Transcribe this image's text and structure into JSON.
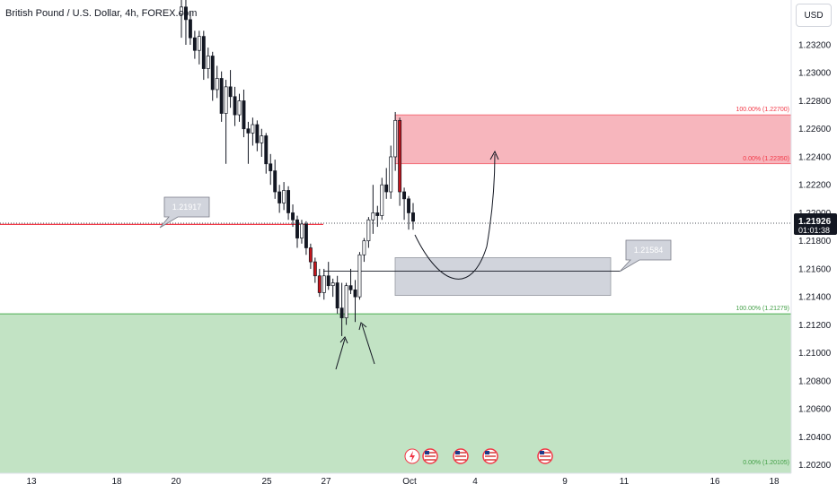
{
  "header": {
    "title": "British Pound / U.S. Dollar, 4h, FOREX.com"
  },
  "currency_button": {
    "label": "USD"
  },
  "price_label": {
    "price": "1.21926",
    "countdown": "01:01:38"
  },
  "callouts": {
    "left": "1.21917",
    "right": "1.21584"
  },
  "fib_labels": {
    "red_top": "100.00% (1.22700)",
    "red_bottom": "0.00% (1.22350)",
    "green_top": "100.00% (1.21279)",
    "green_bottom": "0.00% (1.20105)"
  },
  "colors": {
    "up_candle": "#ffffff",
    "down_candle": "#131722",
    "sell_zone": "#f7b6bd",
    "buy_zone": "#c2e3c4",
    "target_box": "#d1d4dc",
    "price_tag": "#131722",
    "event_icon": "#f23645"
  },
  "event_icons": [
    "flash-icon",
    "us-flag-icon",
    "us-flag-icon",
    "us-flag-icon",
    "us-flag-icon"
  ],
  "chart_data": {
    "type": "candlestick",
    "title": "British Pound / U.S. Dollar, 4h, FOREX.com",
    "y_axis": {
      "ticks": [
        "1.23200",
        "1.23000",
        "1.22800",
        "1.22600",
        "1.22400",
        "1.22200",
        "1.22000",
        "1.21800",
        "1.21600",
        "1.21400",
        "1.21200",
        "1.21000",
        "1.20800",
        "1.20600",
        "1.20400",
        "1.20200"
      ],
      "range": [
        1.2014,
        1.2352
      ]
    },
    "x_axis": {
      "ticks": [
        "13",
        "18",
        "20",
        "25",
        "27",
        "Oct",
        "4",
        "9",
        "11",
        "16",
        "18"
      ]
    },
    "last_price": 1.21926,
    "zones": [
      {
        "name": "sell-zone",
        "top": 1.227,
        "bottom": 1.2235
      },
      {
        "name": "buy-zone",
        "top": 1.21279,
        "bottom": 1.20105
      },
      {
        "name": "target-box",
        "top": 1.2168,
        "bottom": 1.2141
      }
    ],
    "horizontal_lines": [
      {
        "value": 1.21917
      },
      {
        "value": 1.21584
      }
    ],
    "candles": [
      [
        1.2342,
        1.2354,
        1.2325,
        1.2347
      ],
      [
        1.2347,
        1.2355,
        1.232,
        1.2338
      ],
      [
        1.2338,
        1.2344,
        1.232,
        1.2325
      ],
      [
        1.2325,
        1.233,
        1.231,
        1.2316
      ],
      [
        1.2316,
        1.233,
        1.2306,
        1.2326
      ],
      [
        1.2326,
        1.233,
        1.2295,
        1.2303
      ],
      [
        1.2303,
        1.2318,
        1.2296,
        1.2312
      ],
      [
        1.2312,
        1.2315,
        1.228,
        1.2288
      ],
      [
        1.2288,
        1.2305,
        1.2282,
        1.2296
      ],
      [
        1.2296,
        1.2301,
        1.2265,
        1.2271
      ],
      [
        1.2271,
        1.2295,
        1.2235,
        1.229
      ],
      [
        1.229,
        1.2302,
        1.2275,
        1.2283
      ],
      [
        1.2283,
        1.229,
        1.2262,
        1.227
      ],
      [
        1.227,
        1.2285,
        1.2265,
        1.228
      ],
      [
        1.228,
        1.2288,
        1.2254,
        1.226
      ],
      [
        1.226,
        1.2265,
        1.2235,
        1.2257
      ],
      [
        1.2257,
        1.2268,
        1.2248,
        1.2263
      ],
      [
        1.2263,
        1.2266,
        1.2244,
        1.225
      ],
      [
        1.225,
        1.226,
        1.224,
        1.2255
      ],
      [
        1.2255,
        1.2257,
        1.2228,
        1.2235
      ],
      [
        1.2235,
        1.2242,
        1.222,
        1.223
      ],
      [
        1.223,
        1.2238,
        1.221,
        1.2215
      ],
      [
        1.2215,
        1.222,
        1.22,
        1.2207
      ],
      [
        1.2207,
        1.2222,
        1.2202,
        1.2216
      ],
      [
        1.2216,
        1.2219,
        1.2195,
        1.22
      ],
      [
        1.22,
        1.2206,
        1.219,
        1.2195
      ],
      [
        1.2195,
        1.2198,
        1.2175,
        1.2182
      ],
      [
        1.2182,
        1.2195,
        1.2178,
        1.2192
      ],
      [
        1.2192,
        1.2194,
        1.217,
        1.2175
      ],
      [
        1.2175,
        1.2178,
        1.216,
        1.2165
      ],
      [
        1.2165,
        1.2168,
        1.215,
        1.2155
      ],
      [
        1.2155,
        1.216,
        1.214,
        1.2143
      ],
      [
        1.2143,
        1.216,
        1.2138,
        1.2155
      ],
      [
        1.2155,
        1.2165,
        1.2145,
        1.2148
      ],
      [
        1.2148,
        1.2153,
        1.214,
        1.215
      ],
      [
        1.215,
        1.2155,
        1.2128,
        1.2132
      ],
      [
        1.2132,
        1.215,
        1.2112,
        1.2125
      ],
      [
        1.2125,
        1.215,
        1.212,
        1.2148
      ],
      [
        1.2148,
        1.216,
        1.2142,
        1.2145
      ],
      [
        1.2145,
        1.2152,
        1.2122,
        1.214
      ],
      [
        1.214,
        1.2172,
        1.2138,
        1.217
      ],
      [
        1.217,
        1.2182,
        1.2165,
        1.218
      ],
      [
        1.218,
        1.2197,
        1.2175,
        1.2195
      ],
      [
        1.2195,
        1.222,
        1.2185,
        1.22
      ],
      [
        1.22,
        1.2205,
        1.219,
        1.2198
      ],
      [
        1.2198,
        1.2225,
        1.2195,
        1.222
      ],
      [
        1.222,
        1.2232,
        1.221,
        1.2215
      ],
      [
        1.2215,
        1.2248,
        1.221,
        1.224
      ],
      [
        1.224,
        1.2272,
        1.223,
        1.2266
      ],
      [
        1.2266,
        1.2268,
        1.2205,
        1.2215
      ],
      [
        1.2215,
        1.2218,
        1.2195,
        1.221
      ],
      [
        1.221,
        1.2212,
        1.2188,
        1.22
      ],
      [
        1.22,
        1.2207,
        1.2188,
        1.2194
      ]
    ]
  }
}
